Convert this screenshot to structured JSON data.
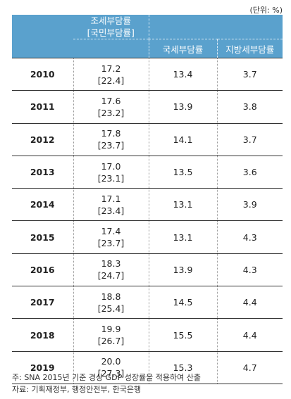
{
  "unit_label": "(단위: %)",
  "header": {
    "total_line1": "조세부담률",
    "total_line2": "[국민부담률]",
    "national": "국세부담률",
    "local": "지방세부담률"
  },
  "rows": [
    {
      "year": "2010",
      "total": "17.2",
      "burden": "[22.4]",
      "national": "13.4",
      "local": "3.7"
    },
    {
      "year": "2011",
      "total": "17.6",
      "burden": "[23.2]",
      "national": "13.9",
      "local": "3.8"
    },
    {
      "year": "2012",
      "total": "17.8",
      "burden": "[23.7]",
      "national": "14.1",
      "local": "3.7"
    },
    {
      "year": "2013",
      "total": "17.0",
      "burden": "[23.1]",
      "national": "13.5",
      "local": "3.6"
    },
    {
      "year": "2014",
      "total": "17.1",
      "burden": "[23.4]",
      "national": "13.1",
      "local": "3.9"
    },
    {
      "year": "2015",
      "total": "17.4",
      "burden": "[23.7]",
      "national": "13.1",
      "local": "4.3"
    },
    {
      "year": "2016",
      "total": "18.3",
      "burden": "[24.7]",
      "national": "13.9",
      "local": "4.3"
    },
    {
      "year": "2017",
      "total": "18.8",
      "burden": "[25.4]",
      "national": "14.5",
      "local": "4.4"
    },
    {
      "year": "2018",
      "total": "19.9",
      "burden": "[26.7]",
      "national": "15.5",
      "local": "4.4"
    },
    {
      "year": "2019",
      "total": "20.0",
      "burden": "[27.3]",
      "national": "15.3",
      "local": "4.7"
    }
  ],
  "notes": {
    "note": "주: SNA 2015년 기준 경상 GDP 성장률을 적용하여 산출",
    "source": "자료: 기획재정부, 행정안전부, 한국은행"
  },
  "colors": {
    "header_bg": "#5aa1cd",
    "header_text": "#ffffff"
  }
}
